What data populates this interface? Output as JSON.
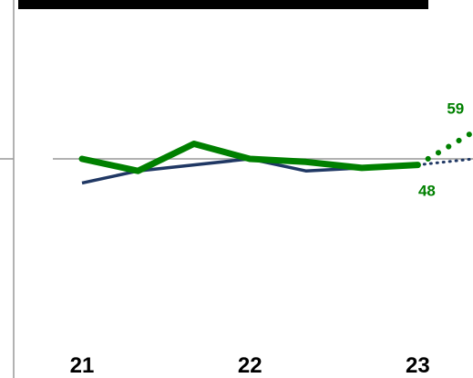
{
  "chart_data": {
    "type": "line",
    "title": "",
    "xlabel": "",
    "ylabel": "",
    "x_ticks": [
      "21",
      "22",
      "23"
    ],
    "x_points": [
      0,
      1,
      2,
      3,
      4,
      5,
      6,
      7
    ],
    "reference_value": 50,
    "ylim": [
      30,
      65
    ],
    "series": [
      {
        "color": "#008000",
        "style": "thick",
        "values": [
          50,
          46,
          55,
          50,
          49,
          47,
          48
        ],
        "projection_values": [
          48,
          59
        ],
        "labels": {
          "last_actual": "48",
          "projection_end": "59"
        }
      },
      {
        "color": "#203864",
        "style": "thin",
        "values": [
          42,
          46,
          48,
          50,
          46,
          47,
          48
        ],
        "projection_values": [
          48,
          50
        ]
      }
    ],
    "colors": {
      "reference_line": "#999999",
      "axis": "#999999"
    }
  }
}
